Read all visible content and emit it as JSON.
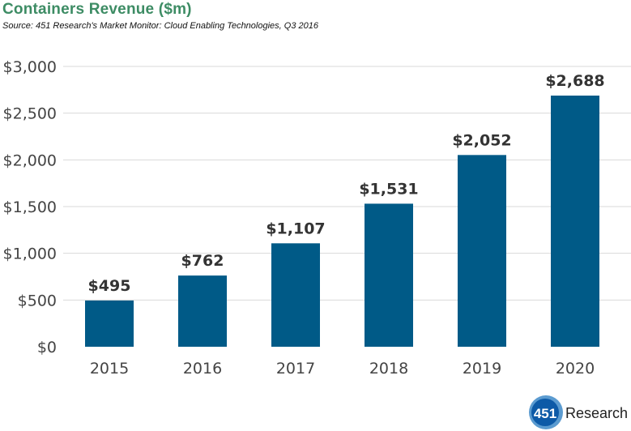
{
  "chart_data": {
    "type": "bar",
    "title": "Containers Revenue ($m)",
    "subtitle": "Source: 451 Research's Market Monitor: Cloud Enabling Technologies, Q3 2016",
    "categories": [
      "2015",
      "2016",
      "2017",
      "2018",
      "2019",
      "2020"
    ],
    "values": [
      495,
      762,
      1107,
      1531,
      2052,
      2688
    ],
    "data_labels": [
      "$495",
      "$762",
      "$1,107",
      "$1,531",
      "$2,052",
      "$2,688"
    ],
    "yticks": [
      0,
      500,
      1000,
      1500,
      2000,
      2500,
      3000
    ],
    "ytick_labels": [
      "$0",
      "$500",
      "$1,000",
      "$1,500",
      "$2,000",
      "$2,500",
      "$3,000"
    ],
    "ylim": [
      0,
      3000
    ],
    "grid": true,
    "bar_color": "#005a87",
    "title_color": "#3d8c64"
  },
  "logo": {
    "number": "451",
    "word": "Research"
  }
}
